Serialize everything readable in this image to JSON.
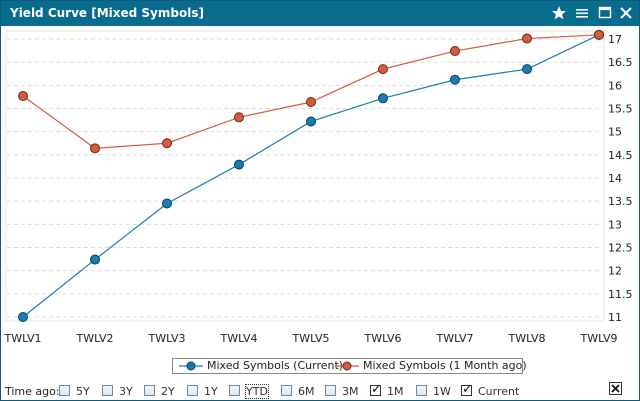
{
  "window": {
    "title": "Yield Curve [Mixed Symbols]"
  },
  "titlebar_icons": [
    "star-icon",
    "menu-icon",
    "maximize-icon",
    "close-icon"
  ],
  "colors": {
    "titlebar": "#076c8e",
    "series_current": "#1a7db0",
    "series_month_ago": "#d65a3e",
    "grid": "#dcdcdc"
  },
  "chart_data": {
    "type": "line",
    "categories": [
      "TWLV1",
      "TWLV2",
      "TWLV3",
      "TWLV4",
      "TWLV5",
      "TWLV6",
      "TWLV7",
      "TWLV8",
      "TWLV9"
    ],
    "series": [
      {
        "name": "Mixed Symbols (Current)",
        "color": "#1a7db0",
        "values": [
          11.0,
          12.24,
          13.45,
          14.29,
          15.22,
          15.72,
          16.12,
          16.35,
          17.09
        ]
      },
      {
        "name": "Mixed Symbols (1 Month ago)",
        "color": "#d65a3e",
        "values": [
          15.77,
          14.64,
          14.75,
          15.31,
          15.64,
          16.35,
          16.74,
          17.01,
          17.09
        ]
      }
    ],
    "yticks": [
      "11",
      "11.5",
      "12",
      "12.5",
      "13",
      "13.5",
      "14",
      "14.5",
      "15",
      "15.5",
      "16",
      "16.5",
      "17"
    ],
    "ylim": [
      11,
      17
    ],
    "grid": true,
    "legend": "bottom",
    "axis_side": "right"
  },
  "legend": {
    "current": "Mixed Symbols (Current)",
    "month_ago": "Mixed Symbols (1 Month ago)"
  },
  "time_ago": {
    "label": "Time ago:",
    "options": [
      {
        "label": "5Y",
        "checked": false,
        "focused": false
      },
      {
        "label": "3Y",
        "checked": false,
        "focused": false
      },
      {
        "label": "2Y",
        "checked": false,
        "focused": false
      },
      {
        "label": "1Y",
        "checked": false,
        "focused": false
      },
      {
        "label": "YTD",
        "checked": false,
        "focused": true
      },
      {
        "label": "6M",
        "checked": false,
        "focused": false
      },
      {
        "label": "3M",
        "checked": false,
        "focused": false
      },
      {
        "label": "1M",
        "checked": true,
        "focused": false
      },
      {
        "label": "1W",
        "checked": false,
        "focused": false
      },
      {
        "label": "Current",
        "checked": true,
        "focused": false
      }
    ]
  }
}
